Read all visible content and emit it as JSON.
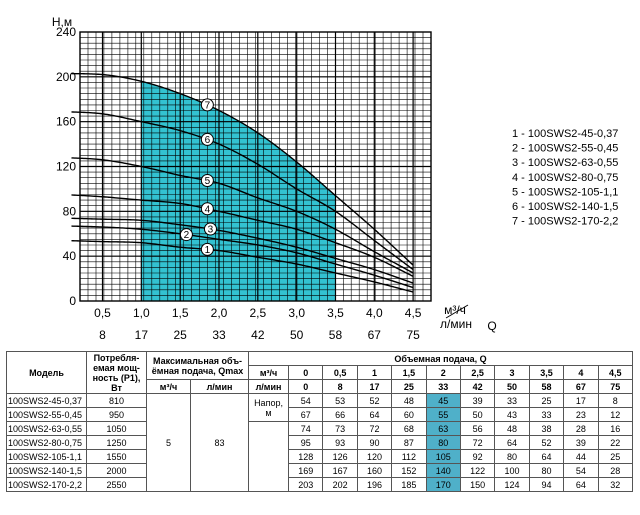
{
  "chart_data": {
    "type": "line",
    "ylabel": "Н,м",
    "xlabel": "Q",
    "x_unit_top": "м³/ч",
    "x_unit_bottom": "л/мин",
    "ylim": [
      0,
      240
    ],
    "xlim": [
      0,
      5
    ],
    "y_ticks": [
      "0",
      "40",
      "80",
      "120",
      "160",
      "200",
      "240"
    ],
    "x_ticks_m3h": [
      "0,5",
      "1,0",
      "1,5",
      "2,0",
      "2,5",
      "3,0",
      "3,5",
      "4,0",
      "4,5"
    ],
    "x_ticks_lmin": [
      "8",
      "17",
      "25",
      "33",
      "42",
      "50",
      "58",
      "67",
      "75"
    ],
    "operating_range": [
      1.0,
      3.5
    ],
    "highlight_color": "#33c2d1",
    "x": [
      0,
      0.5,
      1,
      1.5,
      2,
      2.5,
      3,
      3.5,
      4,
      4.5
    ],
    "series": [
      {
        "curve_no": "1",
        "values": [
          54,
          53,
          52,
          48,
          45,
          39,
          33,
          25,
          17,
          8
        ]
      },
      {
        "curve_no": "2",
        "values": [
          67,
          66,
          64,
          60,
          55,
          50,
          43,
          33,
          23,
          12
        ]
      },
      {
        "curve_no": "3",
        "values": [
          74,
          73,
          72,
          68,
          63,
          56,
          48,
          38,
          28,
          16
        ]
      },
      {
        "curve_no": "4",
        "values": [
          95,
          93,
          90,
          87,
          80,
          72,
          64,
          52,
          39,
          22
        ]
      },
      {
        "curve_no": "5",
        "values": [
          128,
          126,
          120,
          112,
          105,
          92,
          80,
          64,
          44,
          25
        ]
      },
      {
        "curve_no": "6",
        "values": [
          169,
          167,
          160,
          152,
          140,
          122,
          100,
          80,
          54,
          28
        ]
      },
      {
        "curve_no": "7",
        "values": [
          203,
          202,
          196,
          185,
          170,
          150,
          124,
          94,
          64,
          32
        ]
      }
    ],
    "legend": [
      "1 - 100SWS2-45-0,37",
      "2 - 100SWS2-55-0,45",
      "3 - 100SWS2-63-0,55",
      "4 - 100SWS2-80-0,75",
      "5 - 100SWS2-105-1,1",
      "6 - 100SWS2-140-1,5",
      "7 - 100SWS2-170-2,2"
    ]
  },
  "table": {
    "h_model": "Модель",
    "h_power": [
      "Потребля-",
      "емая мощ-",
      "ность (P1), Вт"
    ],
    "h_qmax": [
      "Максимальная объ-",
      "ёмная подача, Qmax"
    ],
    "h_qmax_m3h": "м³/ч",
    "h_qmax_lmin": "л/мин",
    "h_flow": "Объемная подача, Q",
    "h_unit_m3h": "м³/ч",
    "h_unit_lmin": "л/мин",
    "flow_m3h": [
      "0",
      "0,5",
      "1",
      "1,5",
      "2",
      "2,5",
      "3",
      "3,5",
      "4",
      "4,5"
    ],
    "flow_lmin": [
      "0",
      "8",
      "17",
      "25",
      "33",
      "42",
      "50",
      "58",
      "67",
      "75"
    ],
    "qmax_m3h": "5",
    "qmax_lmin": "83",
    "head_label": [
      "Напор,",
      "м"
    ],
    "rows": [
      {
        "model": "100SWS2-45-0,37",
        "power": "810",
        "heads": [
          "54",
          "53",
          "52",
          "48",
          "45",
          "39",
          "33",
          "25",
          "17",
          "8"
        ]
      },
      {
        "model": "100SWS2-55-0,45",
        "power": "950",
        "heads": [
          "67",
          "66",
          "64",
          "60",
          "55",
          "50",
          "43",
          "33",
          "23",
          "12"
        ]
      },
      {
        "model": "100SWS2-63-0,55",
        "power": "1050",
        "heads": [
          "74",
          "73",
          "72",
          "68",
          "63",
          "56",
          "48",
          "38",
          "28",
          "16"
        ]
      },
      {
        "model": "100SWS2-80-0,75",
        "power": "1250",
        "heads": [
          "95",
          "93",
          "90",
          "87",
          "80",
          "72",
          "64",
          "52",
          "39",
          "22"
        ]
      },
      {
        "model": "100SWS2-105-1,1",
        "power": "1550",
        "heads": [
          "128",
          "126",
          "120",
          "112",
          "105",
          "92",
          "80",
          "64",
          "44",
          "25"
        ]
      },
      {
        "model": "100SWS2-140-1,5",
        "power": "2000",
        "heads": [
          "169",
          "167",
          "160",
          "152",
          "140",
          "122",
          "100",
          "80",
          "54",
          "28"
        ]
      },
      {
        "model": "100SWS2-170-2,2",
        "power": "2550",
        "heads": [
          "203",
          "202",
          "196",
          "185",
          "170",
          "150",
          "124",
          "94",
          "64",
          "32"
        ]
      }
    ],
    "highlight_col": 4,
    "highlight_color": "#4fb0c9"
  }
}
